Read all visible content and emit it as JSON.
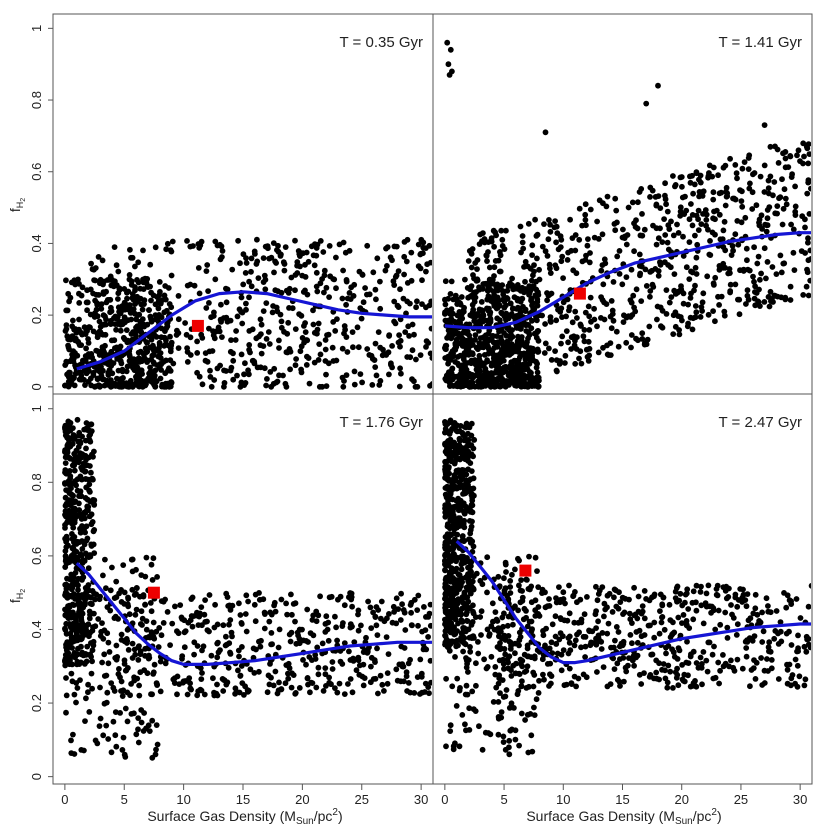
{
  "colors": {
    "points": "#000000",
    "fit_line": "#1515d4",
    "marker": "#ee0000",
    "frame": "#555555",
    "background": "#ffffff"
  },
  "axes": {
    "xlabel": "Surface Gas Density (M",
    "xlabel_sub": "Sun",
    "xlabel_tail": "/pc",
    "xlabel_sup": "2",
    "xlabel_close": ")",
    "ylabel": "f",
    "ylabel_sub": "H",
    "ylabel_subsub": "2"
  },
  "chart_data": [
    {
      "type": "scatter",
      "title": "T = 0.35 Gyr",
      "xlim": [
        -1,
        31
      ],
      "ylim": [
        -0.02,
        1.04
      ],
      "xticks": [
        "0",
        "5",
        "10",
        "15",
        "20",
        "25",
        "30"
      ],
      "yticks": [
        "0",
        "0.2",
        "0.4",
        "0.6",
        "0.8",
        "1"
      ],
      "scatter_model": {
        "n": 1100,
        "seed": 11,
        "x_max": 31,
        "y_max": 0.64,
        "dense_x": [
          0,
          9
        ],
        "dense_y": [
          0,
          0.3
        ]
      },
      "fit_curve": {
        "x": [
          1,
          3,
          5,
          7,
          9,
          11,
          13,
          15,
          17,
          19,
          21,
          23,
          25,
          27,
          29,
          31
        ],
        "y": [
          0.05,
          0.07,
          0.1,
          0.15,
          0.2,
          0.24,
          0.26,
          0.265,
          0.26,
          0.245,
          0.23,
          0.215,
          0.205,
          0.2,
          0.195,
          0.195
        ]
      },
      "marker": {
        "x": 11.2,
        "y": 0.17
      }
    },
    {
      "type": "scatter",
      "title": "T = 1.41 Gyr",
      "xlim": [
        -1,
        31
      ],
      "ylim": [
        -0.02,
        1.04
      ],
      "xticks": [
        "0",
        "5",
        "10",
        "15",
        "20",
        "25",
        "30"
      ],
      "yticks": [],
      "scatter_model": {
        "n": 1500,
        "seed": 23,
        "x_max": 31,
        "y_max": 0.74,
        "dense_x": [
          0,
          8
        ],
        "dense_y": [
          0,
          0.3
        ],
        "outliers": [
          [
            0.2,
            0.96
          ],
          [
            0.5,
            0.94
          ],
          [
            0.3,
            0.9
          ],
          [
            0.6,
            0.88
          ],
          [
            0.4,
            0.87
          ],
          [
            17,
            0.79
          ],
          [
            18,
            0.84
          ],
          [
            8.5,
            0.71
          ],
          [
            27,
            0.73
          ]
        ]
      },
      "fit_curve": {
        "x": [
          0,
          2,
          4,
          6,
          8,
          10,
          12,
          14,
          16,
          18,
          20,
          22,
          24,
          26,
          28,
          30,
          31
        ],
        "y": [
          0.17,
          0.165,
          0.165,
          0.18,
          0.21,
          0.25,
          0.29,
          0.32,
          0.345,
          0.36,
          0.375,
          0.39,
          0.405,
          0.415,
          0.425,
          0.43,
          0.43
        ]
      },
      "marker": {
        "x": 11.4,
        "y": 0.26
      }
    },
    {
      "type": "scatter",
      "title": "T = 1.76 Gyr",
      "xlim": [
        -1,
        31
      ],
      "ylim": [
        -0.02,
        1.04
      ],
      "xticks": [
        "0",
        "5",
        "10",
        "15",
        "20",
        "25",
        "30"
      ],
      "yticks": [
        "0",
        "0.2",
        "0.4",
        "0.6",
        "0.8",
        "1"
      ],
      "scatter_model": {
        "n": 1150,
        "seed": 37,
        "x_max": 31,
        "y_max": 0.98,
        "dense_x": [
          0,
          2.5
        ],
        "dense_y": [
          0.3,
          0.97
        ]
      },
      "fit_curve": {
        "x": [
          1,
          2,
          3,
          4,
          5,
          6,
          7,
          8,
          9,
          10,
          12,
          14,
          16,
          18,
          20,
          22,
          24,
          26,
          28,
          30,
          31
        ],
        "y": [
          0.58,
          0.55,
          0.51,
          0.47,
          0.43,
          0.39,
          0.36,
          0.335,
          0.315,
          0.305,
          0.305,
          0.31,
          0.315,
          0.325,
          0.335,
          0.345,
          0.355,
          0.36,
          0.365,
          0.365,
          0.365
        ]
      },
      "marker": {
        "x": 7.5,
        "y": 0.5
      }
    },
    {
      "type": "scatter",
      "title": "T = 2.47 Gyr",
      "xlim": [
        -1,
        31
      ],
      "ylim": [
        -0.02,
        1.04
      ],
      "xticks": [
        "0",
        "5",
        "10",
        "15",
        "20",
        "25",
        "30"
      ],
      "yticks": [],
      "scatter_model": {
        "n": 1300,
        "seed": 53,
        "x_max": 31,
        "y_max": 0.98,
        "dense_x": [
          0,
          2.5
        ],
        "dense_y": [
          0.35,
          0.97
        ]
      },
      "fit_curve": {
        "x": [
          1,
          2,
          3,
          4,
          5,
          6,
          7,
          8,
          9,
          10,
          11,
          12,
          14,
          16,
          18,
          20,
          22,
          24,
          26,
          28,
          30,
          31
        ],
        "y": [
          0.64,
          0.61,
          0.57,
          0.53,
          0.48,
          0.43,
          0.39,
          0.35,
          0.325,
          0.31,
          0.31,
          0.315,
          0.33,
          0.345,
          0.36,
          0.375,
          0.385,
          0.395,
          0.405,
          0.41,
          0.415,
          0.415
        ]
      },
      "marker": {
        "x": 6.8,
        "y": 0.56
      }
    }
  ]
}
